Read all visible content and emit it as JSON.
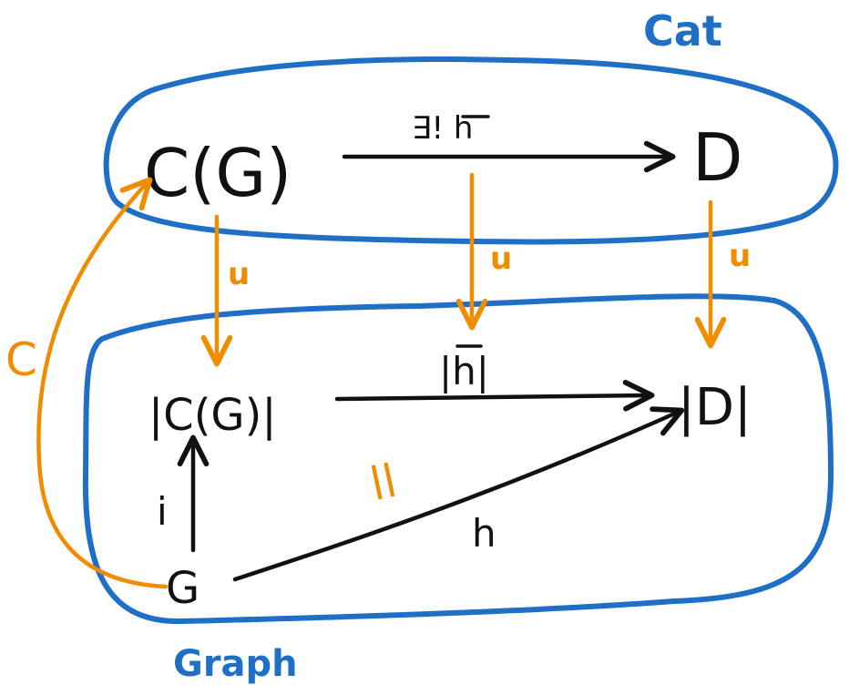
{
  "regions": {
    "cat_label": "Cat",
    "graph_label": "Graph"
  },
  "objects": {
    "cg": "C(G)",
    "d": "D",
    "abs_cg": "|C(G)|",
    "abs_d": "|D|",
    "g": "G"
  },
  "morphisms": {
    "h_bar": "∃! h",
    "abs_h_bar": "|h|",
    "h": "h",
    "i": "i",
    "c": "C",
    "u_left": "u",
    "u_middle": "u",
    "u_right": "u",
    "equals_sign": "||"
  },
  "colors": {
    "category_blue": "#1f6fc6",
    "functor_orange": "#ef8c00",
    "ink_black": "#111111"
  }
}
